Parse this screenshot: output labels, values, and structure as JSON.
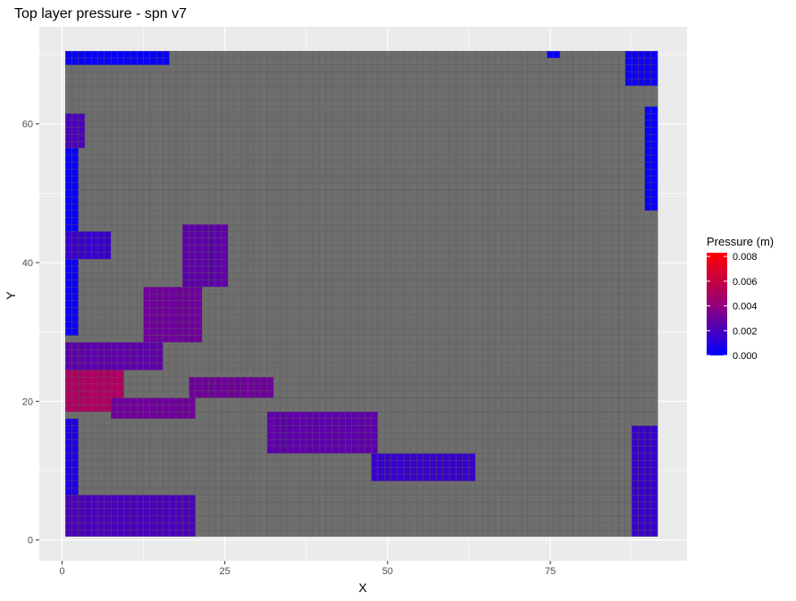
{
  "chart_data": {
    "type": "heatmap",
    "title": "Top layer pressure - spn v7",
    "xlabel": "X",
    "ylabel": "Y",
    "xlim": [
      -3.5,
      96
    ],
    "ylim": [
      -3,
      74
    ],
    "x_ticks": [
      0,
      25,
      50,
      75
    ],
    "x_tick_labels": [
      "0",
      "25",
      "50",
      "75"
    ],
    "y_ticks": [
      0,
      20,
      40,
      60
    ],
    "y_tick_labels": [
      "0",
      "20",
      "40",
      "60"
    ],
    "grid": true,
    "grid_extent": {
      "x_min": 0.5,
      "x_max": 91.5,
      "y_min": 0.5,
      "y_max": 70.5
    },
    "background_cell_color": "#6e6e6e",
    "cell_border_color": "#555555",
    "panel_color": "#ebebeb",
    "legend": {
      "title": "Pressure (m)",
      "position": "right",
      "low_color": "#0000ff",
      "high_color": "#ff0000",
      "min": 0,
      "max": 0.0083,
      "breaks": [
        0,
        0.002,
        0.004,
        0.006,
        0.008
      ],
      "break_labels": [
        "0.000",
        "0.002",
        "0.004",
        "0.006",
        "0.008"
      ]
    },
    "pressure_regions": [
      {
        "x": [
          1,
          16
        ],
        "y": [
          69,
          70
        ],
        "value": 0.0002
      },
      {
        "x": [
          75,
          76
        ],
        "y": [
          70,
          70
        ],
        "value": 0.0002
      },
      {
        "x": [
          87,
          91
        ],
        "y": [
          66,
          70
        ],
        "value": 0.0004
      },
      {
        "x": [
          90,
          91
        ],
        "y": [
          48,
          62
        ],
        "value": 0.0002
      },
      {
        "x": [
          1,
          3
        ],
        "y": [
          57,
          61
        ],
        "value": 0.002
      },
      {
        "x": [
          1,
          2
        ],
        "y": [
          43,
          56
        ],
        "value": 0.0002
      },
      {
        "x": [
          1,
          7
        ],
        "y": [
          41,
          44
        ],
        "value": 0.0015
      },
      {
        "x": [
          1,
          2
        ],
        "y": [
          30,
          40
        ],
        "value": 0.0003
      },
      {
        "x": [
          1,
          15
        ],
        "y": [
          25,
          28
        ],
        "value": 0.0025
      },
      {
        "x": [
          1,
          9
        ],
        "y": [
          19,
          24
        ],
        "value": 0.005
      },
      {
        "x": [
          1,
          2
        ],
        "y": [
          6,
          17
        ],
        "value": 0.0008
      },
      {
        "x": [
          8,
          20
        ],
        "y": [
          18,
          20
        ],
        "value": 0.003
      },
      {
        "x": [
          20,
          32
        ],
        "y": [
          21,
          23
        ],
        "value": 0.003
      },
      {
        "x": [
          32,
          48
        ],
        "y": [
          13,
          18
        ],
        "value": 0.0025
      },
      {
        "x": [
          48,
          63
        ],
        "y": [
          9,
          12
        ],
        "value": 0.0015
      },
      {
        "x": [
          13,
          21
        ],
        "y": [
          29,
          36
        ],
        "value": 0.003
      },
      {
        "x": [
          19,
          25
        ],
        "y": [
          37,
          45
        ],
        "value": 0.0025
      },
      {
        "x": [
          1,
          20
        ],
        "y": [
          1,
          6
        ],
        "value": 0.002
      },
      {
        "x": [
          88,
          91
        ],
        "y": [
          1,
          16
        ],
        "value": 0.0015
      }
    ]
  }
}
